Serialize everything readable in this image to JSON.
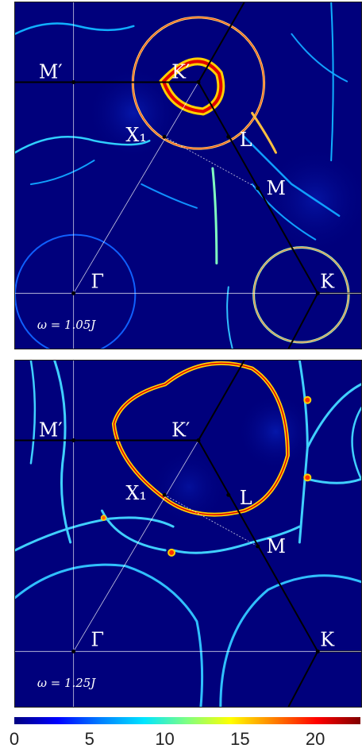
{
  "chart_data": [
    {
      "type": "heatmap",
      "annotation": "ω = 1.05J",
      "point_labels": [
        "M′",
        "K′",
        "X₁",
        "L",
        "M",
        "Γ",
        "K"
      ]
    },
    {
      "type": "heatmap",
      "annotation": "ω = 1.25J",
      "point_labels": [
        "M′",
        "K′",
        "X₁",
        "L",
        "M",
        "Γ",
        "K"
      ]
    }
  ],
  "colorbar": {
    "range": [
      0,
      23
    ],
    "ticks": [
      "0",
      "5",
      "10",
      "15",
      "20"
    ],
    "tick_values": [
      0,
      5,
      10,
      15,
      20
    ],
    "colors": [
      "#000080",
      "#0000ff",
      "#0080ff",
      "#00e5ff",
      "#80ff80",
      "#ffff00",
      "#ff8000",
      "#ff0000",
      "#800000"
    ]
  }
}
